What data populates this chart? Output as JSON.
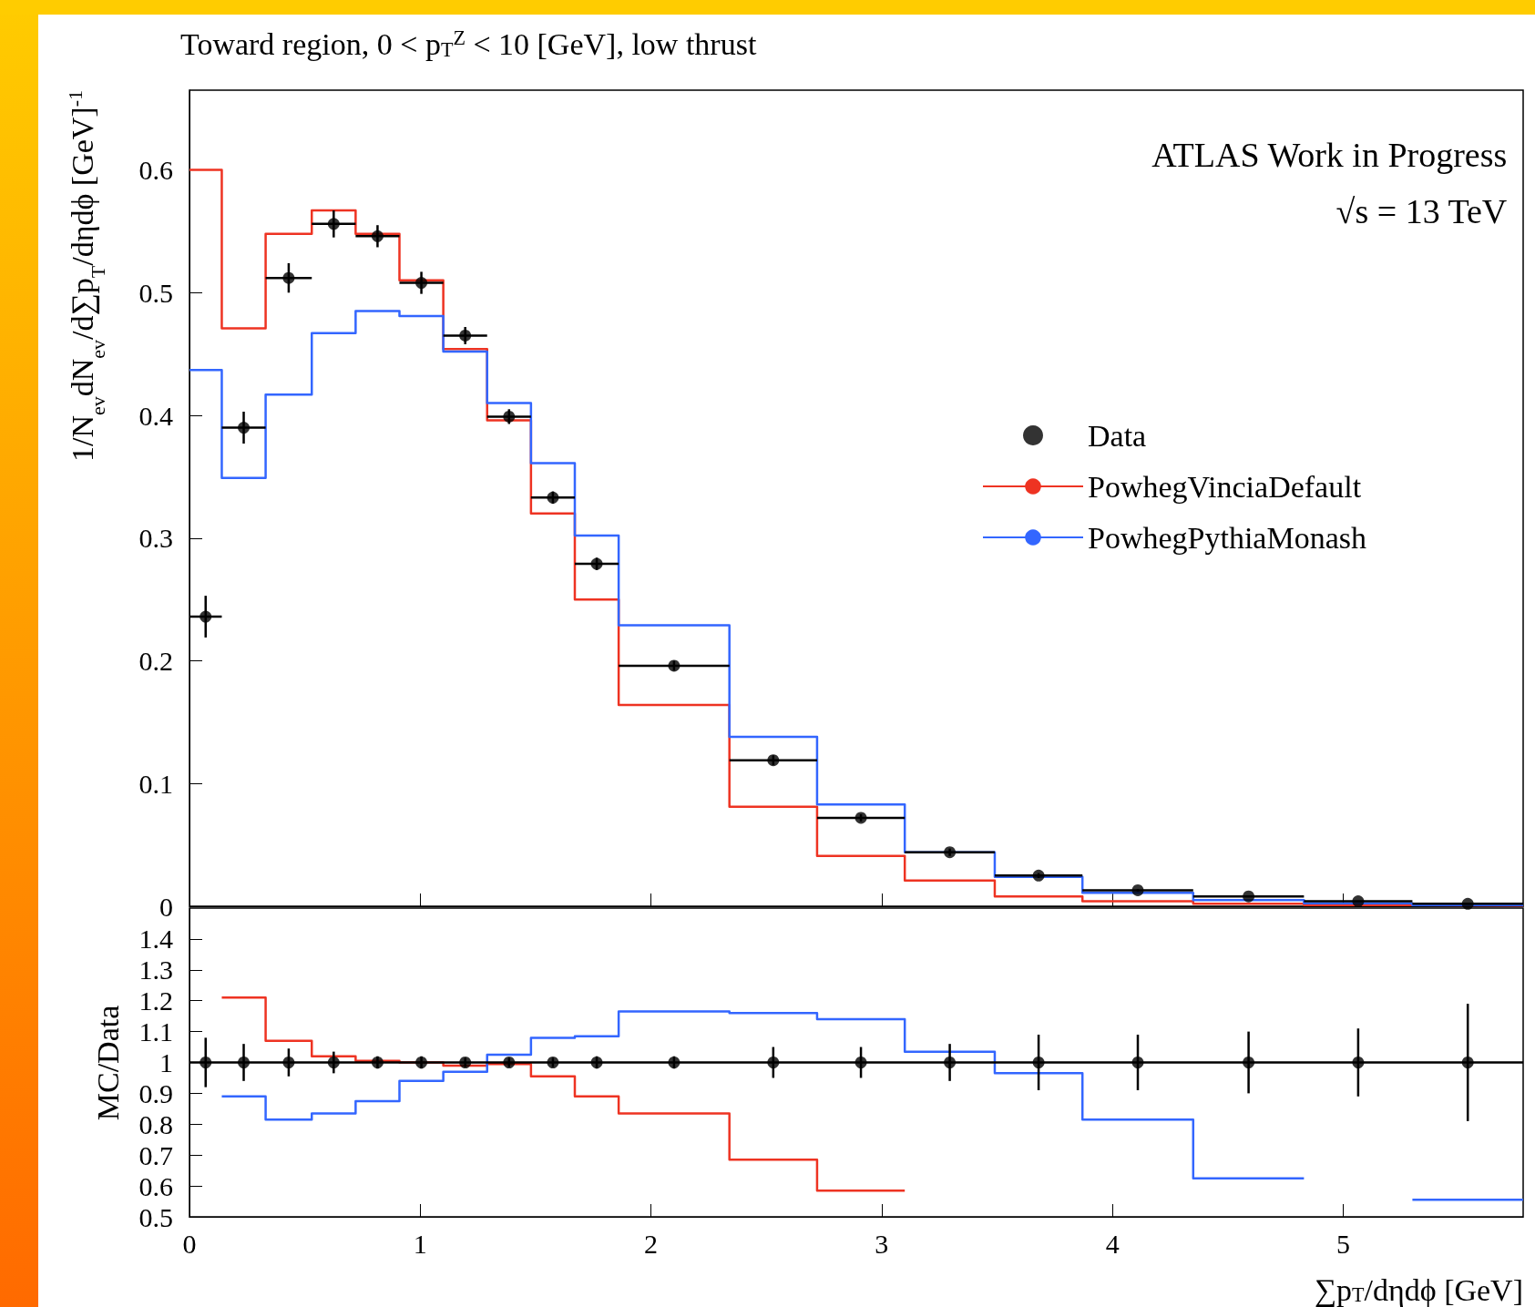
{
  "chart_data": [
    {
      "type": "histogram",
      "title": "Toward region, 0 < p$_{T}$$^{Z}$ < 10 [GeV], low thrust",
      "ylabel": "1/N$_{ev}$dN$_{ev}$/d∑p$_{T}$/dηdϕ [GeV]$^{-1}$",
      "annotations": [
        "ATLAS Work in Progress",
        "√s = 13 TeV"
      ],
      "bins": [
        0,
        0.14,
        0.33,
        0.53,
        0.72,
        0.91,
        1.1,
        1.29,
        1.48,
        1.67,
        1.86,
        2.34,
        2.72,
        3.1,
        3.49,
        3.87,
        4.35,
        4.83,
        5.3,
        5.78
      ],
      "xlim": [
        0,
        5.78
      ],
      "xticks": [
        0,
        1,
        2,
        3,
        4,
        5
      ],
      "ylim": [
        0,
        0.665
      ],
      "yticks": [
        0,
        0.1,
        0.2,
        0.3,
        0.4,
        0.5,
        0.6
      ],
      "tick_labels": "y",
      "grid": false,
      "legend": "right",
      "series": [
        {
          "name": "Data",
          "type": "scatter",
          "color": "#000000",
          "marker": "circle",
          "x": [
            0.07,
            0.235,
            0.43,
            0.625,
            0.815,
            1.005,
            1.195,
            1.385,
            1.575,
            1.765,
            2.1,
            2.53,
            2.91,
            3.295,
            3.68,
            4.11,
            4.59,
            5.065,
            5.54
          ],
          "values": [
            0.236,
            0.39,
            0.512,
            0.556,
            0.546,
            0.508,
            0.465,
            0.399,
            0.333,
            0.279,
            0.196,
            0.119,
            0.072,
            0.044,
            0.025,
            0.013,
            0.008,
            0.004,
            0.002
          ],
          "errors": [
            0.017,
            0.013,
            0.012,
            0.011,
            0.009,
            0.009,
            0.007,
            0.006,
            0.005,
            0.005,
            0.004,
            0.004,
            0.003,
            0.003,
            0.002,
            0.001,
            null,
            null,
            null
          ],
          "xerrors": [
            0.07,
            0.095,
            0.1,
            0.095,
            0.095,
            0.095,
            0.095,
            0.095,
            0.095,
            0.095,
            0.24,
            0.19,
            0.19,
            0.195,
            0.19,
            0.24,
            0.24,
            0.235,
            0.24
          ]
        },
        {
          "name": "PowhegVinciaDefault",
          "type": "histogram",
          "color": "#ee3322",
          "values": [
            0.6,
            0.471,
            0.548,
            0.567,
            0.548,
            0.51,
            0.454,
            0.396,
            0.32,
            0.25,
            0.164,
            0.081,
            0.041,
            0.021,
            0.008,
            0.004,
            0.002,
            0.001,
            0.0005
          ]
        },
        {
          "name": "PowhegPythiaMonash",
          "type": "histogram",
          "color": "#3366ff",
          "values": [
            0.437,
            0.349,
            0.417,
            0.467,
            0.485,
            0.481,
            0.452,
            0.41,
            0.361,
            0.302,
            0.229,
            0.138,
            0.083,
            0.044,
            0.024,
            0.011,
            0.005,
            0.0025,
            0.001
          ]
        }
      ]
    },
    {
      "type": "histogram",
      "ylabel": "MC/Data",
      "xlabel": "∑p$_{T}$/dηdϕ [GeV]",
      "xlim": [
        0,
        5.78
      ],
      "xticks": [
        0,
        1,
        2,
        3,
        4,
        5
      ],
      "ylim": [
        0.5,
        1.5
      ],
      "yticks": [
        0.5,
        0.6,
        0.7,
        0.8,
        0.9,
        1,
        1.1,
        1.2,
        1.3,
        1.4
      ],
      "grid": false,
      "ref_lines": [
        {
          "axis": "y",
          "value": 1,
          "color": "#000000"
        }
      ],
      "series": [
        {
          "type": "scatter",
          "color": "#000000",
          "marker": "circle",
          "x": [
            0.07,
            0.235,
            0.43,
            0.625,
            0.815,
            1.005,
            1.195,
            1.385,
            1.575,
            1.765,
            2.1,
            2.53,
            2.91,
            3.295,
            3.68,
            4.11,
            4.59,
            5.065,
            5.54
          ],
          "values": [
            1,
            1,
            1,
            1,
            1,
            1,
            1,
            1,
            1,
            1,
            1,
            1,
            1,
            1,
            1,
            1,
            1,
            1,
            1
          ],
          "errors": [
            0.08,
            0.06,
            0.045,
            0.035,
            0.02,
            0.02,
            0.015,
            0.015,
            0.015,
            0.02,
            0.02,
            0.05,
            0.05,
            0.06,
            0.09,
            0.09,
            0.1,
            0.11,
            0.19
          ]
        },
        {
          "type": "histogram",
          "color": "#ee3322",
          "bins": [
            0.14,
            0.33,
            0.53,
            0.72,
            0.91,
            1.1,
            1.29,
            1.48,
            1.67,
            1.86,
            2.34,
            2.72,
            3.1
          ],
          "values": [
            1.21,
            1.07,
            1.02,
            1.005,
            1.0,
            0.99,
            0.995,
            0.955,
            0.89,
            0.835,
            0.685,
            0.585
          ]
        },
        {
          "type": "histogram",
          "color": "#3366ff",
          "bins": [
            0.14,
            0.33,
            0.53,
            0.72,
            0.91,
            1.1,
            1.29,
            1.48,
            1.67,
            1.86,
            2.34,
            2.72,
            3.1,
            3.49,
            3.87,
            4.35,
            4.83
          ],
          "values": [
            0.89,
            0.815,
            0.835,
            0.875,
            0.94,
            0.97,
            1.025,
            1.08,
            1.085,
            1.165,
            1.16,
            1.14,
            1.035,
            0.965,
            0.815,
            0.625
          ]
        },
        {
          "type": "line",
          "color": "#3366fe",
          "marker": "none",
          "x": [
            5.3,
            5.78
          ],
          "values": [
            0.555,
            0.555
          ]
        }
      ]
    }
  ]
}
